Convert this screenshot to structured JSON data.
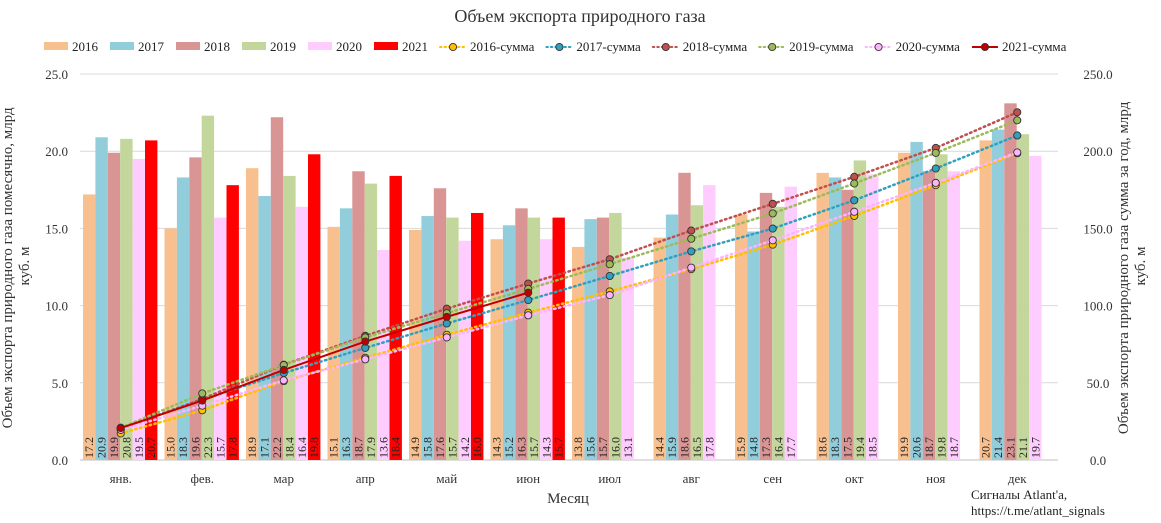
{
  "chart_data": {
    "type": "bar",
    "title": "Объем экспорта природного газа",
    "xlabel": "Месяц",
    "ylabel": "Объем экспорта природного газа помесячно, млрд куб. м",
    "y2label": "Объем экспорта природного газа сумма за год, млрд куб. м",
    "ylim": [
      0,
      25
    ],
    "y2lim": [
      0,
      250
    ],
    "y_ticks": [
      "0.0",
      "5.0",
      "10.0",
      "15.0",
      "20.0",
      "25.0"
    ],
    "y2_ticks": [
      "0.0",
      "50.0",
      "100.0",
      "150.0",
      "200.0",
      "250.0"
    ],
    "grid": true,
    "legend_position": "top",
    "categories": [
      "янв.",
      "фев.",
      "мар",
      "апр",
      "май",
      "июн",
      "июл",
      "авг",
      "сен",
      "окт",
      "ноя",
      "дек"
    ],
    "series": [
      {
        "name": "2016",
        "color": "#f8c08e",
        "values": [
          17.2,
          15.0,
          18.9,
          15.1,
          14.9,
          14.3,
          13.8,
          14.4,
          15.9,
          18.6,
          19.9,
          20.7
        ]
      },
      {
        "name": "2017",
        "color": "#92cddc",
        "values": [
          20.9,
          18.3,
          17.1,
          16.3,
          15.8,
          15.2,
          15.6,
          15.9,
          14.8,
          18.3,
          20.6,
          21.4
        ]
      },
      {
        "name": "2018",
        "color": "#d99594",
        "values": [
          19.9,
          19.6,
          22.2,
          18.7,
          17.6,
          16.3,
          15.7,
          18.6,
          17.3,
          17.5,
          18.7,
          23.1
        ]
      },
      {
        "name": "2019",
        "color": "#c3d69b",
        "values": [
          20.8,
          22.3,
          18.4,
          17.9,
          15.7,
          15.7,
          16.0,
          16.5,
          16.4,
          19.4,
          19.8,
          21.1
        ]
      },
      {
        "name": "2020",
        "color": "#ffccff",
        "values": [
          19.5,
          15.7,
          16.4,
          13.6,
          14.2,
          14.3,
          13.1,
          17.8,
          17.7,
          18.5,
          18.7,
          19.7
        ]
      },
      {
        "name": "2021",
        "color": "#ff0000",
        "values": [
          20.7,
          17.8,
          19.8,
          18.4,
          16.0,
          15.7,
          null,
          null,
          null,
          null,
          null,
          null
        ]
      }
    ],
    "cumulative_series": [
      {
        "name": "2016-сумма",
        "color": "#ffc000",
        "style": "dotted",
        "values": [
          17.2,
          32.2,
          51.1,
          66.2,
          81.1,
          95.4,
          109.2,
          123.6,
          139.5,
          158.1,
          178.0,
          198.7
        ]
      },
      {
        "name": "2017-сумма",
        "color": "#31a0c0",
        "style": "dotted",
        "values": [
          20.9,
          39.2,
          56.3,
          72.6,
          88.4,
          103.6,
          119.2,
          135.1,
          149.9,
          168.2,
          188.8,
          210.2
        ]
      },
      {
        "name": "2018-сумма",
        "color": "#c0504d",
        "style": "dotted",
        "values": [
          19.9,
          39.5,
          61.7,
          80.4,
          98.0,
          114.3,
          130.0,
          148.6,
          165.9,
          183.4,
          202.1,
          225.2
        ]
      },
      {
        "name": "2019-сумма",
        "color": "#9bbb59",
        "style": "dotted",
        "values": [
          20.8,
          43.1,
          61.5,
          79.4,
          95.1,
          110.8,
          126.8,
          143.3,
          159.7,
          179.1,
          198.9,
          220.0
        ]
      },
      {
        "name": "2020-сумма",
        "color": "#ffb3ff",
        "style": "dotted",
        "values": [
          19.5,
          35.2,
          51.6,
          65.2,
          79.4,
          93.7,
          106.8,
          124.6,
          142.3,
          160.8,
          179.5,
          199.2
        ]
      },
      {
        "name": "2021-сумма",
        "color": "#c00000",
        "style": "solid",
        "values": [
          20.7,
          38.5,
          58.3,
          76.7,
          92.7,
          108.4,
          null,
          null,
          null,
          null,
          null,
          null
        ]
      }
    ]
  },
  "credit": {
    "line1": "Сигналы Atlant'a,",
    "line2": "https://t.me/atlant_signals"
  }
}
